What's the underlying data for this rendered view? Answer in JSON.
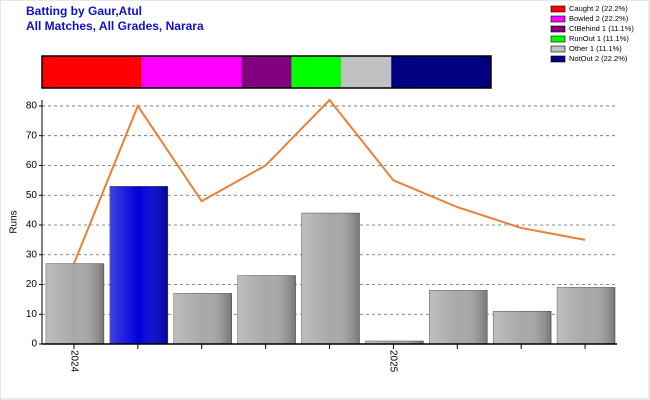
{
  "chart_data": {
    "type": "bar",
    "title": "Batting by Gaur,Atul",
    "subtitle": "All Matches, All Grades, Narara",
    "y_label": "Runs",
    "categories": [
      "2024",
      null,
      null,
      null,
      null,
      "2025",
      null,
      null,
      null
    ],
    "series": [
      {
        "type": "bar",
        "values": [
          27,
          53,
          17,
          23,
          44,
          1,
          18,
          11,
          19
        ],
        "colors": [
          "#a8a8a8",
          "#0000d8",
          "#a8a8a8",
          "#a8a8a8",
          "#a8a8a8",
          "#a8a8a8",
          "#a8a8a8",
          "#a8a8a8",
          "#a8a8a8"
        ]
      },
      {
        "type": "line",
        "color": "#e8803a",
        "values": [
          27,
          80,
          48,
          60,
          82,
          55,
          46,
          39,
          35
        ]
      }
    ],
    "ylim": [
      0,
      82
    ],
    "yticks": [
      0,
      10,
      20,
      30,
      40,
      50,
      60,
      70,
      80
    ],
    "grid": true,
    "dismissals": [
      {
        "label": "Caught 2 (22.2%)",
        "value": 2,
        "color": "#ff0000"
      },
      {
        "label": "Bowled 2 (22.2%)",
        "value": 2,
        "color": "#ff00ff"
      },
      {
        "label": "CtBehind 1 (11.1%)",
        "value": 1,
        "color": "#800080"
      },
      {
        "label": "RunOut 1 (11.1%)",
        "value": 1,
        "color": "#00ff00"
      },
      {
        "label": "Other 1 (11.1%)",
        "value": 1,
        "color": "#c0c0c0"
      },
      {
        "label": "NotOut 2 (22.2%)",
        "value": 2,
        "color": "#000080"
      }
    ]
  }
}
